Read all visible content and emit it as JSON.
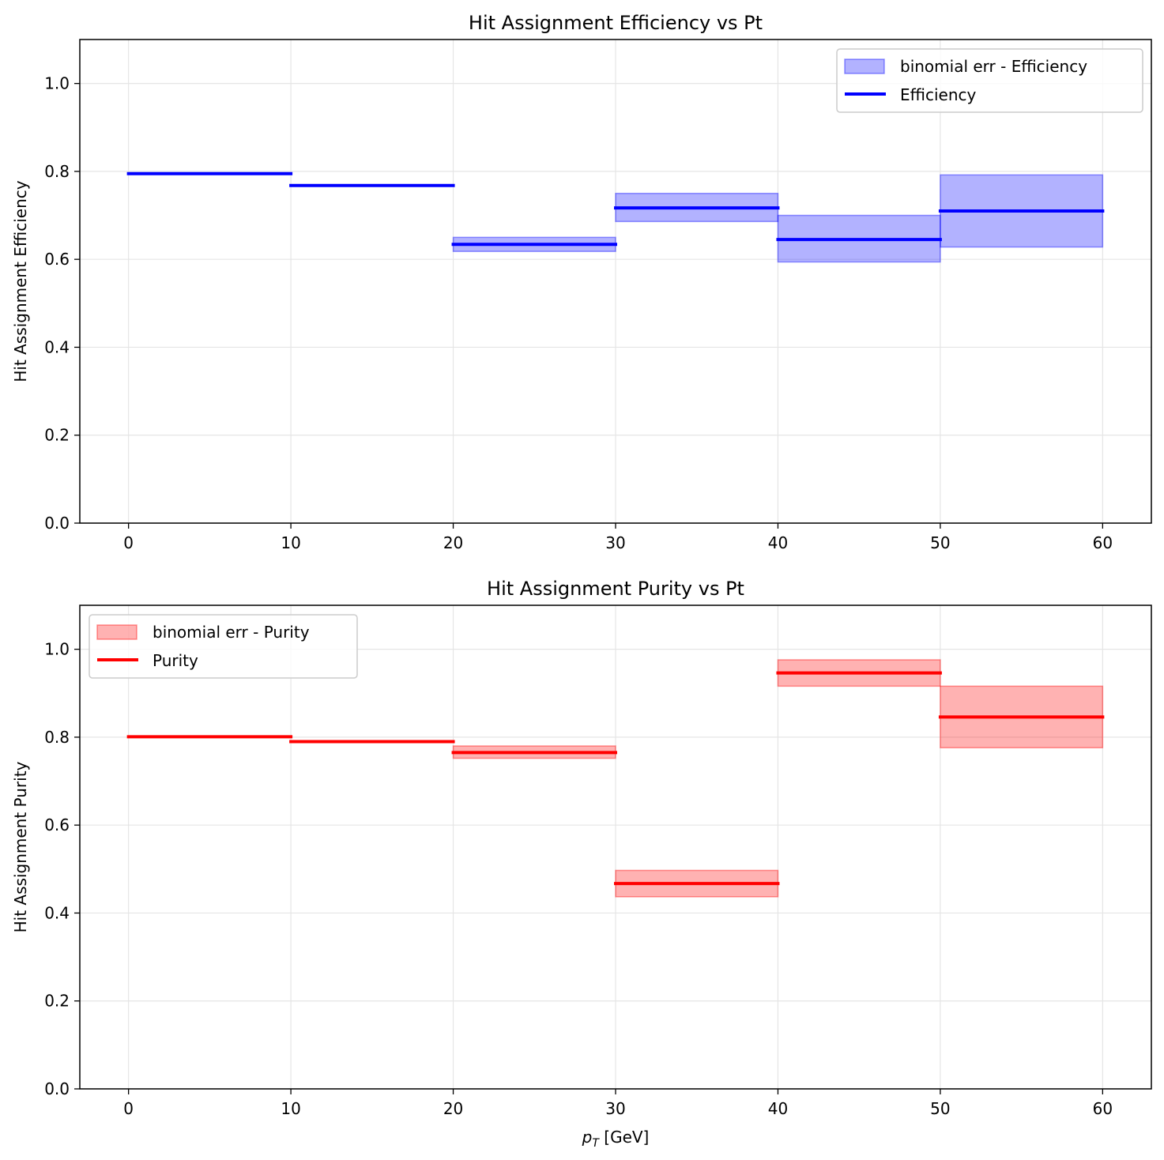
{
  "chart_data": [
    {
      "type": "step",
      "title": "Hit Assignment Efficiency vs Pt",
      "xlabel": "",
      "ylabel": "Hit Assignment Efficiency",
      "xlim": [
        -3,
        63
      ],
      "ylim": [
        0,
        1.1
      ],
      "xticks": [
        "0",
        "10",
        "20",
        "30",
        "40",
        "50",
        "60"
      ],
      "yticks": [
        "0.0",
        "0.2",
        "0.4",
        "0.6",
        "0.8",
        "1.0"
      ],
      "grid": true,
      "legend_position": "top-right",
      "color": "#0000ff",
      "bins": [
        [
          0,
          10
        ],
        [
          10,
          20
        ],
        [
          20,
          30
        ],
        [
          30,
          40
        ],
        [
          40,
          50
        ],
        [
          50,
          60
        ]
      ],
      "series": [
        {
          "name": "Efficiency",
          "values": [
            0.795,
            0.768,
            0.634,
            0.717,
            0.645,
            0.71
          ]
        },
        {
          "name": "binomial err - Efficiency",
          "lower": [
            0.795,
            0.768,
            0.618,
            0.686,
            0.594,
            0.628
          ],
          "upper": [
            0.795,
            0.768,
            0.65,
            0.75,
            0.7,
            0.792
          ]
        }
      ]
    },
    {
      "type": "step",
      "title": "Hit Assignment Purity vs Pt",
      "xlabel": "p_T [GeV]",
      "ylabel": "Hit Assignment Purity",
      "xlim": [
        -3,
        63
      ],
      "ylim": [
        0,
        1.1
      ],
      "xticks": [
        "0",
        "10",
        "20",
        "30",
        "40",
        "50",
        "60"
      ],
      "yticks": [
        "0.0",
        "0.2",
        "0.4",
        "0.6",
        "0.8",
        "1.0"
      ],
      "grid": true,
      "legend_position": "top-left",
      "color": "#ff0000",
      "bins": [
        [
          0,
          10
        ],
        [
          10,
          20
        ],
        [
          20,
          30
        ],
        [
          30,
          40
        ],
        [
          40,
          50
        ],
        [
          50,
          60
        ]
      ],
      "series": [
        {
          "name": "Purity",
          "values": [
            0.801,
            0.79,
            0.765,
            0.467,
            0.946,
            0.846
          ]
        },
        {
          "name": "binomial err - Purity",
          "lower": [
            0.801,
            0.79,
            0.752,
            0.437,
            0.916,
            0.776
          ],
          "upper": [
            0.801,
            0.79,
            0.78,
            0.497,
            0.976,
            0.916
          ]
        }
      ]
    }
  ]
}
